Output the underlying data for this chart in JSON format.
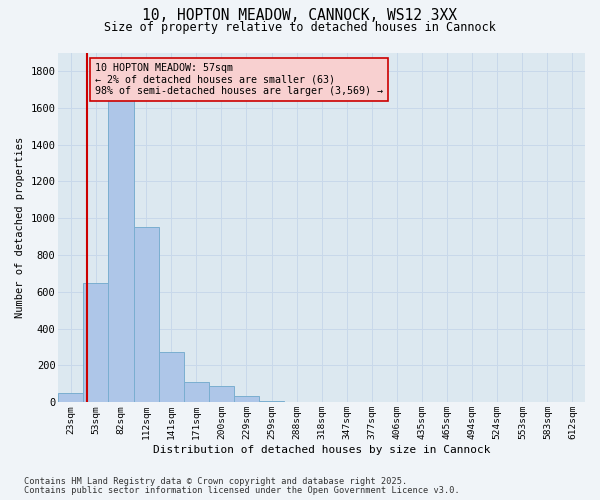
{
  "title": "10, HOPTON MEADOW, CANNOCK, WS12 3XX",
  "subtitle": "Size of property relative to detached houses in Cannock",
  "xlabel": "Distribution of detached houses by size in Cannock",
  "ylabel": "Number of detached properties",
  "categories": [
    "23sqm",
    "53sqm",
    "82sqm",
    "112sqm",
    "141sqm",
    "171sqm",
    "200sqm",
    "229sqm",
    "259sqm",
    "288sqm",
    "318sqm",
    "347sqm",
    "377sqm",
    "406sqm",
    "435sqm",
    "465sqm",
    "494sqm",
    "524sqm",
    "553sqm",
    "583sqm",
    "612sqm"
  ],
  "values": [
    50,
    650,
    1680,
    950,
    270,
    110,
    90,
    35,
    5,
    0,
    0,
    0,
    0,
    0,
    0,
    0,
    0,
    0,
    0,
    0,
    0
  ],
  "bar_color": "#aec6e8",
  "bar_edge_color": "#7aaed0",
  "grid_color": "#c8d8ea",
  "background_color": "#dce8f0",
  "plot_bg_color": "#dce8f0",
  "fig_bg_color": "#f0f4f8",
  "vline_color": "#cc0000",
  "annotation_text": "10 HOPTON MEADOW: 57sqm\n← 2% of detached houses are smaller (63)\n98% of semi-detached houses are larger (3,569) →",
  "annotation_box_facecolor": "#f8d0d0",
  "annotation_box_edge": "#cc0000",
  "ylim": [
    0,
    1900
  ],
  "yticks": [
    0,
    200,
    400,
    600,
    800,
    1000,
    1200,
    1400,
    1600,
    1800
  ],
  "footnote1": "Contains HM Land Registry data © Crown copyright and database right 2025.",
  "footnote2": "Contains public sector information licensed under the Open Government Licence v3.0."
}
